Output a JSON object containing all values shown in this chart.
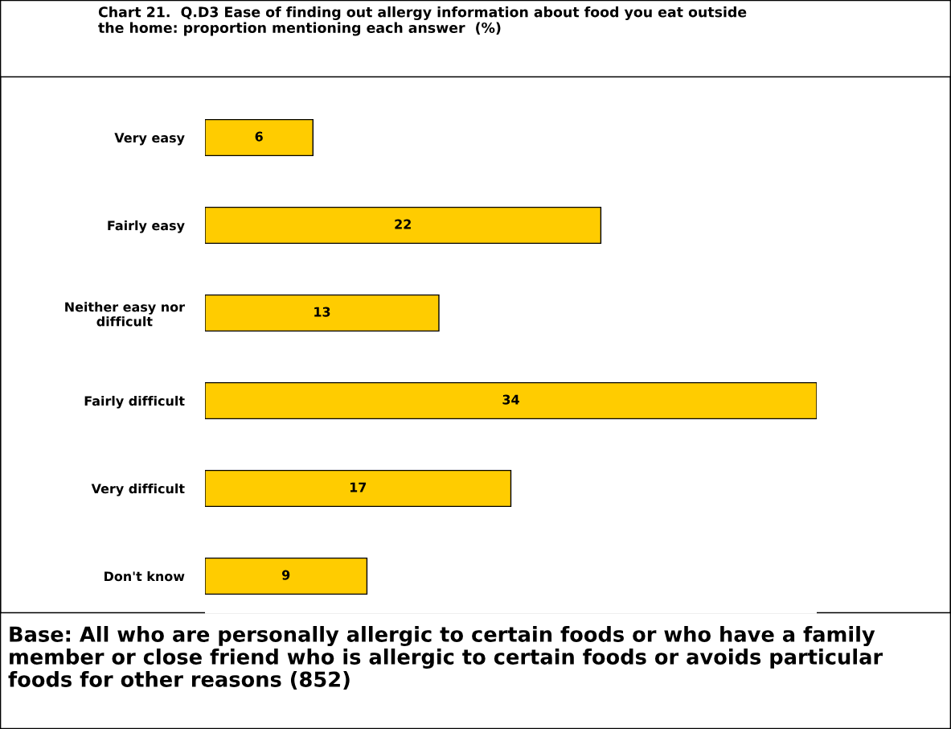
{
  "chart_data": {
    "type": "bar",
    "orientation": "horizontal",
    "title": "Chart 21.  Q.D3 Ease of finding out allergy information about food you eat outside\nthe home: proportion mentioning each answer  (%)",
    "categories": [
      "Very easy",
      "Fairly easy",
      "Neither easy nor\ndifficult",
      "Fairly difficult",
      "Very difficult",
      "Don't know"
    ],
    "values": [
      6,
      22,
      13,
      34,
      17,
      9
    ],
    "color": "#ffcc00",
    "data_labels": true,
    "grid": false,
    "legend": false,
    "annotations": [
      "Base: All who are personally allergic to certain foods or who have a family member or close friend who is allergic to certain foods or avoids particular foods for other reasons (852)"
    ]
  }
}
